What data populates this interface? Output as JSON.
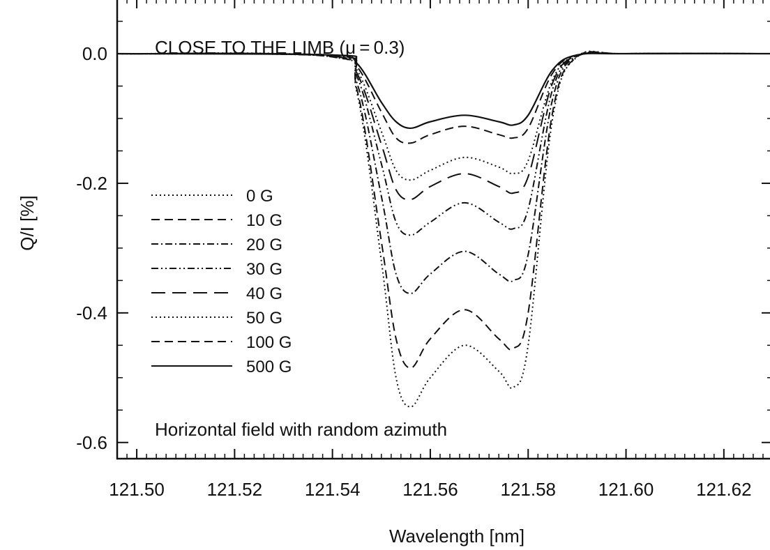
{
  "chart_data": {
    "type": "line",
    "xlabel": "Wavelength [nm]",
    "ylabel": "Q/I [%]",
    "xlim": [
      121.496,
      121.63
    ],
    "ylim": [
      -0.625,
      0.085
    ],
    "x_ticks": [
      121.5,
      121.52,
      121.54,
      121.56,
      121.58,
      121.6,
      121.62
    ],
    "x_tick_labels": [
      "121.50",
      "121.52",
      "121.54",
      "121.56",
      "121.58",
      "121.60",
      "121.62"
    ],
    "y_ticks": [
      0.0,
      -0.2,
      -0.4,
      -0.6
    ],
    "y_tick_labels": [
      "0.0",
      "-0.2",
      "-0.4",
      "-0.6"
    ],
    "grid": false,
    "legend_position": "left-middle",
    "annotations": {
      "top": "CLOSE TO THE LIMB (μ = 0.3)",
      "bottom": "Horizontal field with random azimuth"
    },
    "line_center": 121.567,
    "series": [
      {
        "name": "0 G",
        "style": "dotted",
        "x": [
          121.496,
          121.54,
          121.545,
          121.55,
          121.553,
          121.556,
          121.56,
          121.567,
          121.574,
          121.577,
          121.58,
          121.585,
          121.59,
          121.6,
          121.63
        ],
        "y": [
          0.0,
          -0.005,
          -0.06,
          -0.32,
          -0.5,
          -0.545,
          -0.5,
          -0.45,
          -0.49,
          -0.515,
          -0.45,
          -0.1,
          -0.005,
          0.0,
          0.0
        ]
      },
      {
        "name": "10 G",
        "style": "dashed",
        "x": [
          121.496,
          121.54,
          121.545,
          121.55,
          121.553,
          121.556,
          121.56,
          121.567,
          121.574,
          121.577,
          121.58,
          121.585,
          121.59,
          121.6,
          121.63
        ],
        "y": [
          0.0,
          -0.005,
          -0.055,
          -0.29,
          -0.44,
          -0.485,
          -0.44,
          -0.395,
          -0.44,
          -0.455,
          -0.4,
          -0.09,
          -0.005,
          0.0,
          0.0
        ]
      },
      {
        "name": "20 G",
        "style": "dash-dot",
        "x": [
          121.496,
          121.54,
          121.545,
          121.55,
          121.553,
          121.556,
          121.56,
          121.567,
          121.574,
          121.577,
          121.58,
          121.585,
          121.59,
          121.6,
          121.63
        ],
        "y": [
          0.0,
          -0.004,
          -0.045,
          -0.22,
          -0.34,
          -0.37,
          -0.34,
          -0.305,
          -0.34,
          -0.35,
          -0.31,
          -0.07,
          -0.004,
          0.0,
          0.0
        ]
      },
      {
        "name": "30 G",
        "style": "dash-dot-dot",
        "x": [
          121.496,
          121.54,
          121.545,
          121.55,
          121.553,
          121.556,
          121.56,
          121.567,
          121.574,
          121.577,
          121.58,
          121.585,
          121.59,
          121.6,
          121.63
        ],
        "y": [
          0.0,
          -0.004,
          -0.035,
          -0.17,
          -0.26,
          -0.28,
          -0.26,
          -0.23,
          -0.26,
          -0.27,
          -0.24,
          -0.055,
          -0.004,
          0.0,
          0.0
        ]
      },
      {
        "name": "40 G",
        "style": "long-dashed",
        "x": [
          121.496,
          121.54,
          121.545,
          121.55,
          121.553,
          121.556,
          121.56,
          121.567,
          121.574,
          121.577,
          121.58,
          121.585,
          121.59,
          121.6,
          121.63
        ],
        "y": [
          0.0,
          -0.003,
          -0.03,
          -0.14,
          -0.21,
          -0.225,
          -0.205,
          -0.185,
          -0.205,
          -0.215,
          -0.19,
          -0.045,
          -0.003,
          0.0,
          0.0
        ]
      },
      {
        "name": "50 G",
        "style": "dotted",
        "x": [
          121.496,
          121.54,
          121.545,
          121.55,
          121.553,
          121.556,
          121.56,
          121.567,
          121.574,
          121.577,
          121.58,
          121.585,
          121.59,
          121.6,
          121.63
        ],
        "y": [
          0.0,
          -0.003,
          -0.025,
          -0.12,
          -0.18,
          -0.195,
          -0.18,
          -0.16,
          -0.175,
          -0.185,
          -0.165,
          -0.04,
          -0.003,
          0.0,
          0.0
        ]
      },
      {
        "name": "100 G",
        "style": "dashed",
        "x": [
          121.496,
          121.54,
          121.545,
          121.55,
          121.553,
          121.556,
          121.56,
          121.567,
          121.574,
          121.577,
          121.58,
          121.585,
          121.59,
          121.6,
          121.63
        ],
        "y": [
          0.0,
          -0.002,
          -0.02,
          -0.09,
          -0.13,
          -0.138,
          -0.125,
          -0.112,
          -0.125,
          -0.13,
          -0.115,
          -0.03,
          -0.002,
          0.0,
          0.0
        ]
      },
      {
        "name": "500 G",
        "style": "solid",
        "x": [
          121.496,
          121.54,
          121.545,
          121.55,
          121.553,
          121.556,
          121.56,
          121.567,
          121.574,
          121.577,
          121.58,
          121.585,
          121.59,
          121.6,
          121.63
        ],
        "y": [
          0.0,
          -0.002,
          -0.015,
          -0.075,
          -0.105,
          -0.115,
          -0.105,
          -0.095,
          -0.105,
          -0.11,
          -0.095,
          -0.025,
          -0.002,
          0.0,
          0.0
        ]
      }
    ]
  }
}
